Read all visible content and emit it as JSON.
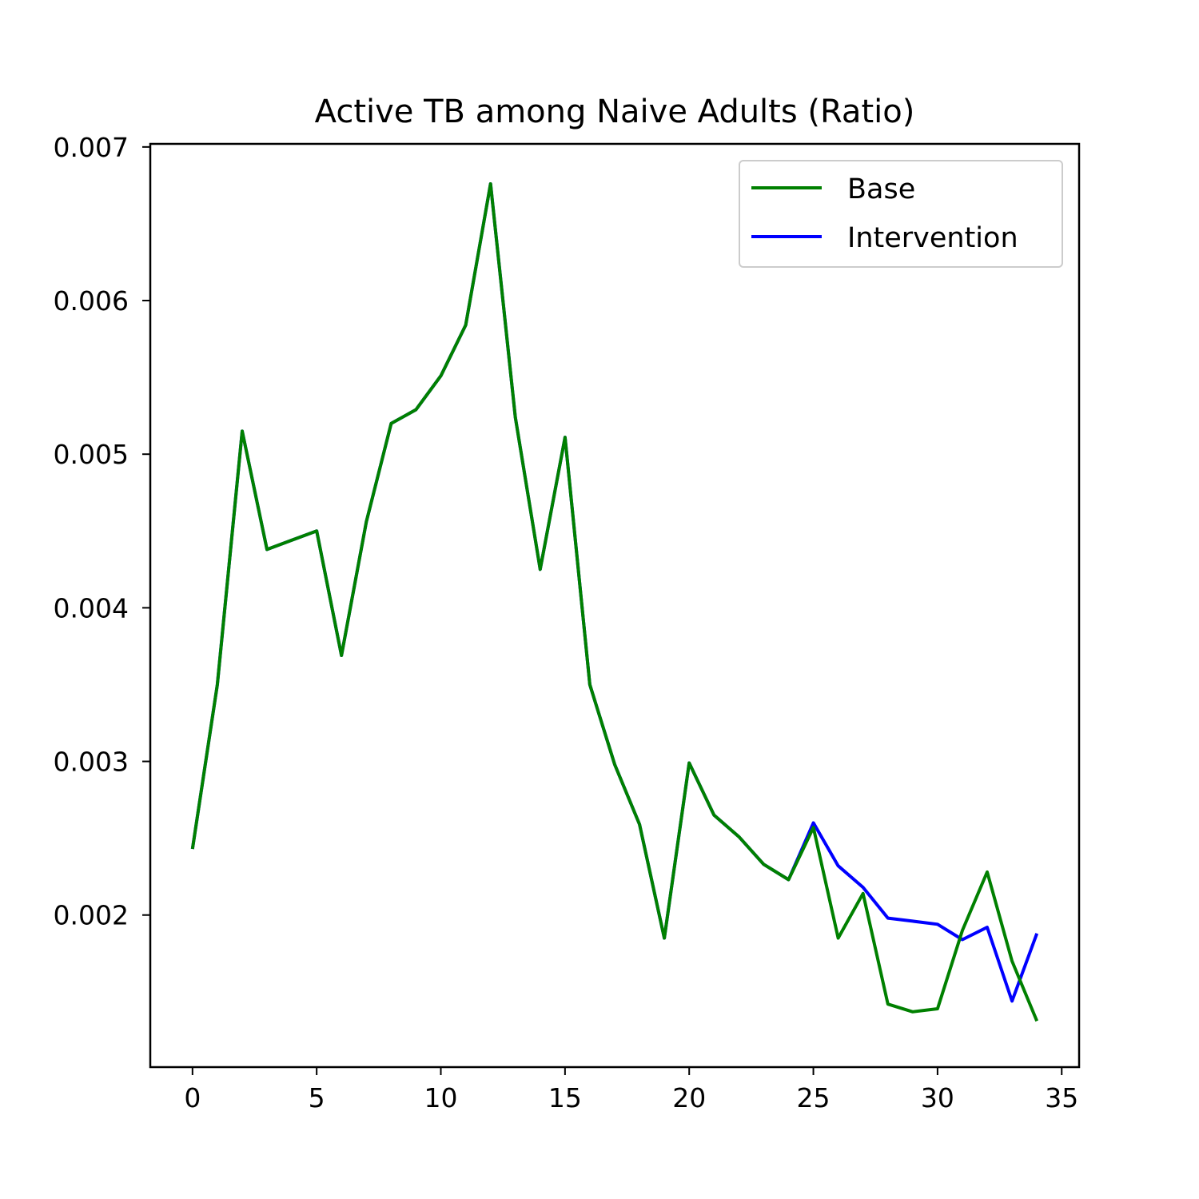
{
  "chart_data": {
    "type": "line",
    "title": "Active TB among Naive Adults (Ratio)",
    "xlabel": "",
    "ylabel": "",
    "xlim": [
      -1.7,
      35.7
    ],
    "ylim": [
      0.00101,
      0.00702
    ],
    "x_ticks": [
      0,
      5,
      10,
      15,
      20,
      25,
      30,
      35
    ],
    "y_ticks": [
      0.002,
      0.003,
      0.004,
      0.005,
      0.006,
      0.007
    ],
    "x_tick_labels": [
      "0",
      "5",
      "10",
      "15",
      "20",
      "25",
      "30",
      "35"
    ],
    "y_tick_labels": [
      "0.002",
      "0.003",
      "0.004",
      "0.005",
      "0.006",
      "0.007"
    ],
    "grid": false,
    "legend_position": "top-right",
    "x": [
      0,
      1,
      2,
      3,
      4,
      5,
      6,
      7,
      8,
      9,
      10,
      11,
      12,
      13,
      14,
      15,
      16,
      17,
      18,
      19,
      20,
      21,
      22,
      23,
      24,
      25,
      26,
      27,
      28,
      29,
      30,
      31,
      32,
      33,
      34
    ],
    "series": [
      {
        "name": "Base",
        "color": "#008000",
        "values": [
          0.00243,
          0.0035,
          0.00515,
          0.00438,
          0.00444,
          0.0045,
          0.00369,
          0.00456,
          0.0052,
          0.00529,
          0.00551,
          0.00584,
          0.00676,
          0.00524,
          0.00425,
          0.00511,
          0.0035,
          0.00298,
          0.00259,
          0.00185,
          0.00299,
          0.00265,
          0.00251,
          0.00233,
          0.00223,
          0.00257,
          0.00185,
          0.00214,
          0.00142,
          0.00137,
          0.00139,
          0.0019,
          0.00228,
          0.0017,
          0.00131
        ]
      },
      {
        "name": "Intervention",
        "color": "#0000ff",
        "values": [
          0.00243,
          0.0035,
          0.00515,
          0.00438,
          0.00444,
          0.0045,
          0.00369,
          0.00456,
          0.0052,
          0.00529,
          0.00551,
          0.00584,
          0.00676,
          0.00524,
          0.00425,
          0.00511,
          0.0035,
          0.00298,
          0.00259,
          0.00185,
          0.00299,
          0.00265,
          0.00251,
          0.00233,
          0.00223,
          0.0026,
          0.00232,
          0.00218,
          0.00198,
          0.00196,
          0.00194,
          0.00184,
          0.00192,
          0.00144,
          0.00188
        ]
      }
    ]
  }
}
